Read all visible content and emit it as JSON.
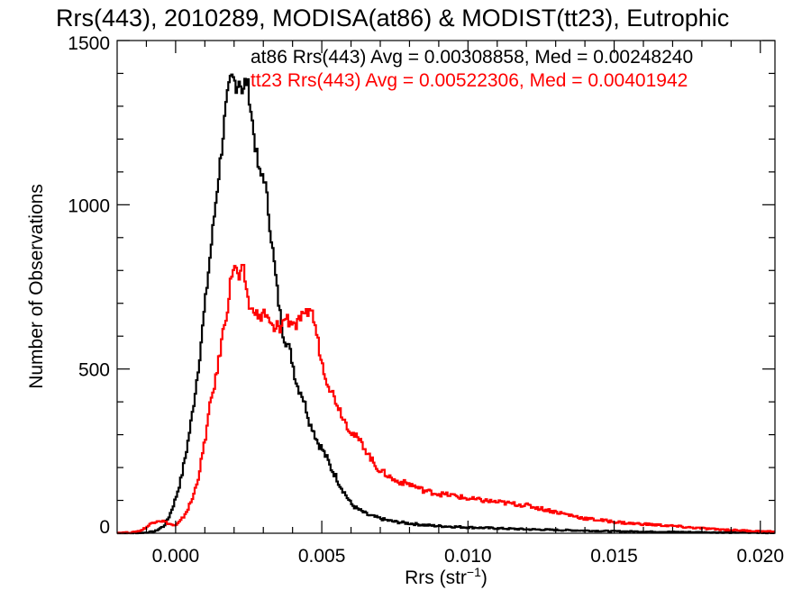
{
  "chart_data": {
    "type": "line",
    "title": "Rrs(443), 2010289, MODISA(at86) & MODIST(tt23), Eutrophic",
    "xlabel_main": "Rrs (str",
    "xlabel_sup": "−1",
    "xlabel_close": ")",
    "ylabel": "Number of Observations",
    "xlim": [
      -0.002,
      0.0205
    ],
    "ylim": [
      0,
      1500
    ],
    "x_ticks": [
      0.0,
      0.005,
      0.01,
      0.015,
      0.02
    ],
    "x_tick_labels": [
      "0.000",
      "0.005",
      "0.010",
      "0.015",
      "0.020"
    ],
    "y_ticks": [
      0,
      500,
      1000,
      1500
    ],
    "y_tick_labels": [
      "0",
      "500",
      "1000",
      "1500"
    ],
    "grid": false,
    "legend_position": "top-right",
    "series": [
      {
        "name": "at86",
        "legend_text": "at86 Rrs(443) Avg = 0.00308858, Med = 0.00248240",
        "color": "#000000",
        "points": [
          [
            -0.0015,
            0
          ],
          [
            -0.001,
            2
          ],
          [
            -0.0007,
            6
          ],
          [
            -0.0004,
            22
          ],
          [
            -0.0002,
            55
          ],
          [
            0.0,
            105
          ],
          [
            0.0002,
            170
          ],
          [
            0.0004,
            265
          ],
          [
            0.0006,
            380
          ],
          [
            0.0008,
            520
          ],
          [
            0.001,
            690
          ],
          [
            0.0012,
            860
          ],
          [
            0.0014,
            1030
          ],
          [
            0.0016,
            1190
          ],
          [
            0.0017,
            1280
          ],
          [
            0.0018,
            1340
          ],
          [
            0.0019,
            1385
          ],
          [
            0.002,
            1380
          ],
          [
            0.0021,
            1360
          ],
          [
            0.0022,
            1390
          ],
          [
            0.0023,
            1330
          ],
          [
            0.0024,
            1385
          ],
          [
            0.0025,
            1350
          ],
          [
            0.0026,
            1270
          ],
          [
            0.0027,
            1200
          ],
          [
            0.0028,
            1130
          ],
          [
            0.0029,
            1080
          ],
          [
            0.003,
            1100
          ],
          [
            0.0031,
            1040
          ],
          [
            0.0032,
            960
          ],
          [
            0.0033,
            880
          ],
          [
            0.0034,
            800
          ],
          [
            0.0035,
            720
          ],
          [
            0.0036,
            650
          ],
          [
            0.0037,
            600
          ],
          [
            0.0038,
            580
          ],
          [
            0.0039,
            560
          ],
          [
            0.004,
            520
          ],
          [
            0.0041,
            470
          ],
          [
            0.0042,
            440
          ],
          [
            0.0043,
            430
          ],
          [
            0.0044,
            400
          ],
          [
            0.0045,
            370
          ],
          [
            0.0046,
            330
          ],
          [
            0.0047,
            320
          ],
          [
            0.0048,
            290
          ],
          [
            0.0049,
            270
          ],
          [
            0.005,
            260
          ],
          [
            0.0051,
            240
          ],
          [
            0.0052,
            225
          ],
          [
            0.0053,
            200
          ],
          [
            0.0054,
            185
          ],
          [
            0.0055,
            170
          ],
          [
            0.0056,
            150
          ],
          [
            0.0057,
            135
          ],
          [
            0.0058,
            120
          ],
          [
            0.0059,
            105
          ],
          [
            0.006,
            90
          ],
          [
            0.0062,
            75
          ],
          [
            0.0064,
            65
          ],
          [
            0.0066,
            55
          ],
          [
            0.0068,
            50
          ],
          [
            0.007,
            45
          ],
          [
            0.0072,
            40
          ],
          [
            0.0075,
            35
          ],
          [
            0.008,
            30
          ],
          [
            0.0085,
            25
          ],
          [
            0.009,
            22
          ],
          [
            0.0095,
            20
          ],
          [
            0.01,
            18
          ],
          [
            0.011,
            15
          ],
          [
            0.012,
            12
          ],
          [
            0.013,
            10
          ],
          [
            0.014,
            8
          ],
          [
            0.015,
            6
          ],
          [
            0.016,
            5
          ],
          [
            0.017,
            4
          ],
          [
            0.018,
            3
          ],
          [
            0.019,
            2
          ],
          [
            0.02,
            2
          ],
          [
            0.0205,
            1
          ]
        ]
      },
      {
        "name": "tt23",
        "legend_text": "tt23 Rrs(443) Avg = 0.00522306, Med = 0.00401942",
        "color": "#ff0000",
        "points": [
          [
            -0.0015,
            2
          ],
          [
            -0.0012,
            8
          ],
          [
            -0.001,
            18
          ],
          [
            -0.0008,
            32
          ],
          [
            -0.0006,
            40
          ],
          [
            -0.0004,
            36
          ],
          [
            -0.0002,
            28
          ],
          [
            0.0,
            22
          ],
          [
            0.0002,
            40
          ],
          [
            0.0004,
            70
          ],
          [
            0.0006,
            110
          ],
          [
            0.0008,
            180
          ],
          [
            0.001,
            280
          ],
          [
            0.0012,
            400
          ],
          [
            0.0014,
            480
          ],
          [
            0.0016,
            600
          ],
          [
            0.0018,
            700
          ],
          [
            0.0019,
            780
          ],
          [
            0.002,
            820
          ],
          [
            0.0021,
            790
          ],
          [
            0.0022,
            770
          ],
          [
            0.0023,
            810
          ],
          [
            0.0024,
            760
          ],
          [
            0.0025,
            700
          ],
          [
            0.0026,
            670
          ],
          [
            0.0027,
            690
          ],
          [
            0.0028,
            660
          ],
          [
            0.0029,
            650
          ],
          [
            0.003,
            680
          ],
          [
            0.0031,
            660
          ],
          [
            0.0032,
            640
          ],
          [
            0.0033,
            630
          ],
          [
            0.0034,
            610
          ],
          [
            0.0035,
            640
          ],
          [
            0.0036,
            620
          ],
          [
            0.0037,
            650
          ],
          [
            0.0038,
            660
          ],
          [
            0.0039,
            640
          ],
          [
            0.004,
            650
          ],
          [
            0.0041,
            630
          ],
          [
            0.0042,
            640
          ],
          [
            0.0043,
            660
          ],
          [
            0.0044,
            650
          ],
          [
            0.0045,
            670
          ],
          [
            0.0046,
            690
          ],
          [
            0.0047,
            660
          ],
          [
            0.0048,
            620
          ],
          [
            0.0049,
            570
          ],
          [
            0.005,
            520
          ],
          [
            0.0052,
            460
          ],
          [
            0.0054,
            420
          ],
          [
            0.0056,
            380
          ],
          [
            0.0058,
            340
          ],
          [
            0.006,
            310
          ],
          [
            0.0062,
            290
          ],
          [
            0.0064,
            270
          ],
          [
            0.0066,
            240
          ],
          [
            0.0068,
            210
          ],
          [
            0.007,
            190
          ],
          [
            0.0072,
            180
          ],
          [
            0.0075,
            160
          ],
          [
            0.008,
            150
          ],
          [
            0.0085,
            130
          ],
          [
            0.009,
            120
          ],
          [
            0.0095,
            115
          ],
          [
            0.01,
            105
          ],
          [
            0.0105,
            100
          ],
          [
            0.011,
            95
          ],
          [
            0.0115,
            90
          ],
          [
            0.012,
            85
          ],
          [
            0.0125,
            75
          ],
          [
            0.013,
            65
          ],
          [
            0.0135,
            55
          ],
          [
            0.014,
            45
          ],
          [
            0.0145,
            40
          ],
          [
            0.015,
            35
          ],
          [
            0.0155,
            30
          ],
          [
            0.016,
            28
          ],
          [
            0.0165,
            25
          ],
          [
            0.017,
            22
          ],
          [
            0.0175,
            18
          ],
          [
            0.018,
            15
          ],
          [
            0.0185,
            12
          ],
          [
            0.019,
            10
          ],
          [
            0.0195,
            8
          ],
          [
            0.02,
            6
          ],
          [
            0.0205,
            5
          ]
        ]
      }
    ]
  }
}
